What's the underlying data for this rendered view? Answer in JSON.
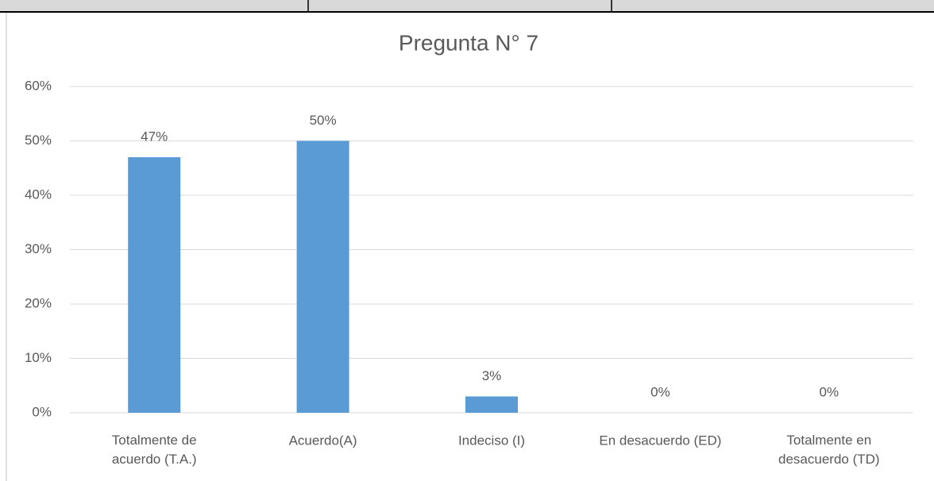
{
  "chart_data": {
    "type": "bar",
    "title": "Pregunta N° 7",
    "categories": [
      "Totalmente de\nacuerdo (T.A.)",
      "Acuerdo(A)",
      "Indeciso (I)",
      "En desacuerdo (ED)",
      "Totalmente en\ndesacuerdo  (TD)"
    ],
    "values": [
      47,
      50,
      3,
      0,
      0
    ],
    "value_labels": [
      "47%",
      "50%",
      "3%",
      "0%",
      "0%"
    ],
    "color": "#5b9bd5",
    "ylim": [
      0,
      60
    ],
    "yticks": [
      {
        "value": 0,
        "label": "0%"
      },
      {
        "value": 10,
        "label": "10%"
      },
      {
        "value": 20,
        "label": "20%"
      },
      {
        "value": 30,
        "label": "30%"
      },
      {
        "value": 40,
        "label": "40%"
      },
      {
        "value": 50,
        "label": "50%"
      },
      {
        "value": 60,
        "label": "60%"
      }
    ],
    "grid": true
  }
}
